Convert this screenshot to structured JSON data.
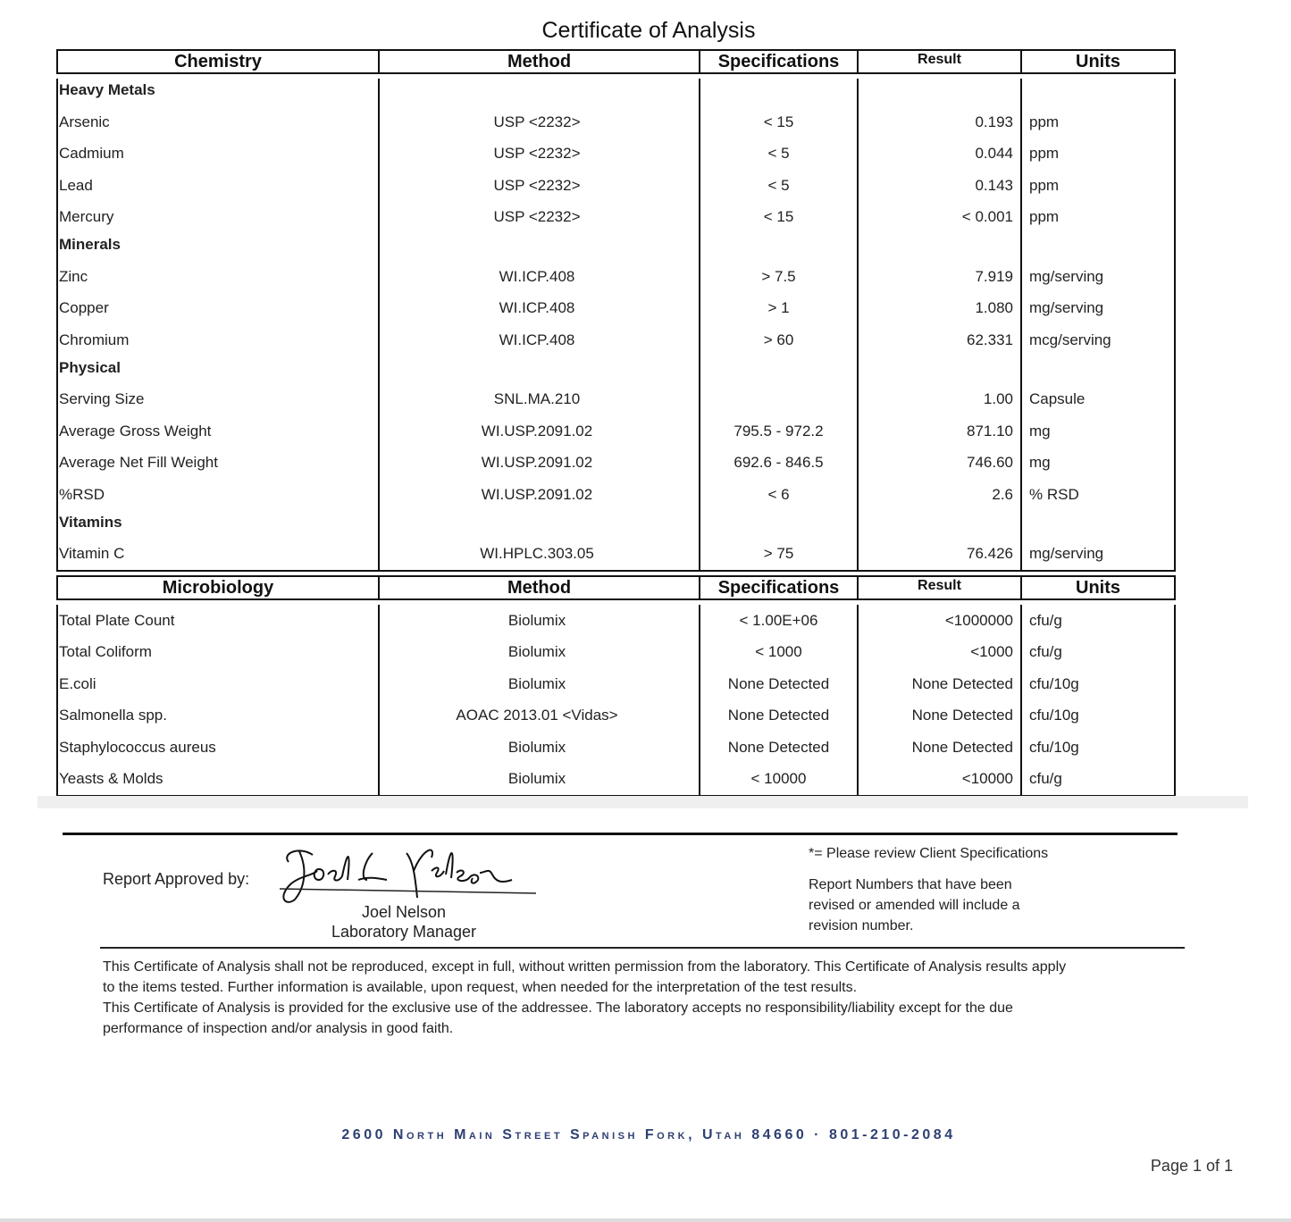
{
  "title": "Certificate of Analysis",
  "chemistry": {
    "headers": [
      "Chemistry",
      "Method",
      "Specifications",
      "Result",
      "Units"
    ],
    "groups": [
      {
        "category": "Heavy Metals",
        "items": [
          {
            "name": "Arsenic",
            "method": "USP <2232>",
            "spec": "< 15",
            "result": "0.193",
            "units": "ppm"
          },
          {
            "name": "Cadmium",
            "method": "USP <2232>",
            "spec": "< 5",
            "result": "0.044",
            "units": "ppm"
          },
          {
            "name": "Lead",
            "method": "USP <2232>",
            "spec": "< 5",
            "result": "0.143",
            "units": "ppm"
          },
          {
            "name": "Mercury",
            "method": "USP <2232>",
            "spec": "< 15",
            "result": "< 0.001",
            "units": "ppm"
          }
        ]
      },
      {
        "category": "Minerals",
        "items": [
          {
            "name": "Zinc",
            "method": "WI.ICP.408",
            "spec": "> 7.5",
            "result": "7.919",
            "units": "mg/serving"
          },
          {
            "name": "Copper",
            "method": "WI.ICP.408",
            "spec": "> 1",
            "result": "1.080",
            "units": "mg/serving"
          },
          {
            "name": "Chromium",
            "method": "WI.ICP.408",
            "spec": "> 60",
            "result": "62.331",
            "units": "mcg/serving"
          }
        ]
      },
      {
        "category": "Physical",
        "items": [
          {
            "name": "Serving Size",
            "method": "SNL.MA.210",
            "spec": "",
            "result": "1.00",
            "units": "Capsule"
          },
          {
            "name": "Average Gross Weight",
            "method": "WI.USP.2091.02",
            "spec": "795.5 - 972.2",
            "result": "871.10",
            "units": "mg"
          },
          {
            "name": "Average Net Fill Weight",
            "method": "WI.USP.2091.02",
            "spec": "692.6 - 846.5",
            "result": "746.60",
            "units": "mg"
          },
          {
            "name": "%RSD",
            "method": "WI.USP.2091.02",
            "spec": "< 6",
            "result": "2.6",
            "units": "% RSD"
          }
        ]
      },
      {
        "category": "Vitamins",
        "items": [
          {
            "name": "Vitamin C",
            "method": "WI.HPLC.303.05",
            "spec": "> 75",
            "result": "76.426",
            "units": "mg/serving"
          }
        ]
      }
    ]
  },
  "microbiology": {
    "headers": [
      "Microbiology",
      "Method",
      "Specifications",
      "Result",
      "Units"
    ],
    "items": [
      {
        "name": "Total Plate Count",
        "method": "Biolumix",
        "spec": "< 1.00E+06",
        "result": "<1000000",
        "units": "cfu/g"
      },
      {
        "name": "Total Coliform",
        "method": "Biolumix",
        "spec": "< 1000",
        "result": "<1000",
        "units": "cfu/g"
      },
      {
        "name": "E.coli",
        "method": "Biolumix",
        "spec": "None Detected",
        "result": "None Detected",
        "units": "cfu/10g"
      },
      {
        "name": "Salmonella spp.",
        "method": "AOAC 2013.01 <Vidas>",
        "spec": "None Detected",
        "result": "None Detected",
        "units": "cfu/10g"
      },
      {
        "name": "Staphylococcus aureus",
        "method": "Biolumix",
        "spec": "None Detected",
        "result": "None Detected",
        "units": "cfu/10g"
      },
      {
        "name": "Yeasts & Molds",
        "method": "Biolumix",
        "spec": "< 10000",
        "result": "<10000",
        "units": "cfu/g"
      }
    ]
  },
  "approval": {
    "label": "Report Approved by:",
    "signature": "Joel L Nelson",
    "name": "Joel Nelson",
    "role": "Laboratory Manager"
  },
  "notes": {
    "client_spec": "*= Please review Client Specifications",
    "revision": [
      "Report Numbers that have been",
      "revised or amended will include a",
      "revision number."
    ]
  },
  "disclaimer": [
    "This Certificate of Analysis shall not be reproduced, except in full, without written permission from the laboratory. This Certificate of Analysis results apply",
    "to the items tested. Further information is available, upon request, when needed for the interpretation of the test results.",
    "This Certificate of Analysis is provided for the exclusive use of the addressee. The laboratory accepts no responsibility/liability except for the due",
    "performance of inspection and/or analysis in good faith."
  ],
  "address": "2600 North Main Street Spanish Fork, Utah   84660 · 801-210-2084",
  "page": "Page 1 of 1"
}
